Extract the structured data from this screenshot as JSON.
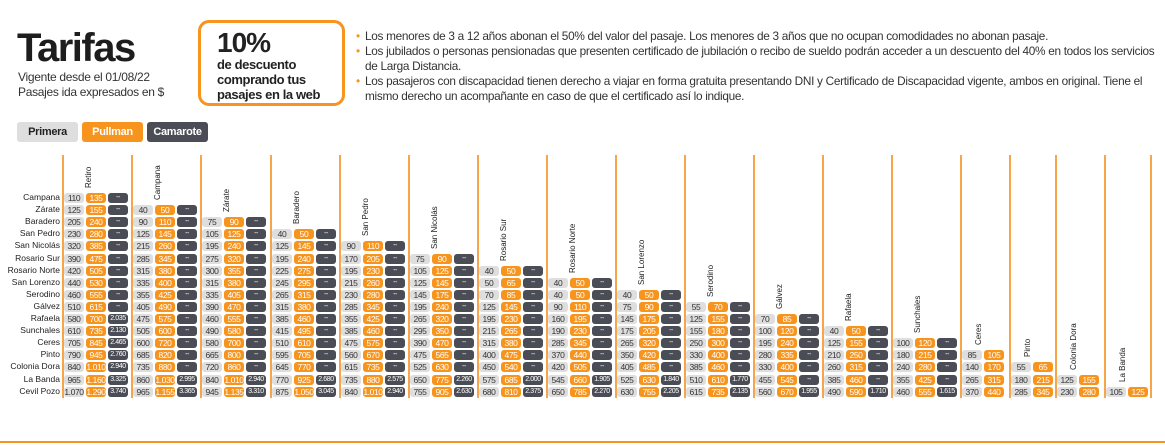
{
  "header": {
    "title": "Tarifas",
    "valid_from": "Vigente desde el 01/08/22",
    "currency_note": "Pasajes ida expresados en $"
  },
  "promo": {
    "percent": "10%",
    "text_lines": [
      "de descuento",
      "comprando tus",
      "pasajes en la web"
    ]
  },
  "notes": [
    "Los menores de 3 a 12 años abonan el 50% del valor del pasaje. Los menores de 3 años que no ocupan comodidades no abonan pasaje.",
    "Los jubilados o personas pensionadas que presenten certificado de jubilación o recibo de sueldo podrán acceder a un descuento del 40% en todos los servicios de Larga Distancia.",
    "Los pasajeros con discapacidad tienen derecho a viajar en forma gratuita presentando DNI y Certificado de Discapacidad vigente, ambos en original. Tiene el mismo derecho un acompañante en caso de que el certificado así lo indique."
  ],
  "classes": [
    {
      "label": "Primera",
      "color": "#dedede"
    },
    {
      "label": "Pullman",
      "color": "#f7941d"
    },
    {
      "label": "Camarote",
      "color": "#4a4d55"
    }
  ],
  "rows": [
    "Campana",
    "Zárate",
    "Baradero",
    "San Pedro",
    "San Nicolás",
    "Rosario Sur",
    "Rosario Norte",
    "San Lorenzo",
    "Serodino",
    "Gálvez",
    "Rafaela",
    "Sunchales",
    "Ceres",
    "Pinto",
    "Colonia Dora",
    "La Banda",
    "Cevil Pozo"
  ],
  "columns": [
    {
      "name": "Retiro",
      "fares": [
        [
          "110",
          "135",
          "--"
        ],
        [
          "125",
          "155",
          "--"
        ],
        [
          "205",
          "240",
          "--"
        ],
        [
          "230",
          "280",
          "--"
        ],
        [
          "320",
          "385",
          "--"
        ],
        [
          "390",
          "475",
          "--"
        ],
        [
          "420",
          "505",
          "--"
        ],
        [
          "440",
          "530",
          "--"
        ],
        [
          "460",
          "555",
          "--"
        ],
        [
          "510",
          "615",
          "--"
        ],
        [
          "580",
          "700",
          "2.035"
        ],
        [
          "610",
          "735",
          "2.130"
        ],
        [
          "705",
          "845",
          "2.465"
        ],
        [
          "790",
          "945",
          "2.760"
        ],
        [
          "840",
          "1.010",
          "2.940"
        ],
        [
          "965",
          "1.160",
          "3.325"
        ],
        [
          "1.070",
          "1.290",
          "3.740"
        ]
      ]
    },
    {
      "name": "Campana",
      "fares": [
        [
          "40",
          "50",
          "--"
        ],
        [
          "90",
          "110",
          "--"
        ],
        [
          "125",
          "145",
          "--"
        ],
        [
          "215",
          "260",
          "--"
        ],
        [
          "285",
          "345",
          "--"
        ],
        [
          "315",
          "380",
          "--"
        ],
        [
          "335",
          "400",
          "--"
        ],
        [
          "355",
          "425",
          "--"
        ],
        [
          "405",
          "490",
          "--"
        ],
        [
          "475",
          "575",
          "--"
        ],
        [
          "505",
          "600",
          "--"
        ],
        [
          "600",
          "720",
          "--"
        ],
        [
          "685",
          "820",
          "--"
        ],
        [
          "735",
          "880",
          "--"
        ],
        [
          "860",
          "1.030",
          "2.995"
        ],
        [
          "965",
          "1.155",
          "3.365"
        ]
      ]
    },
    {
      "name": "Zárate",
      "fares": [
        [
          "75",
          "90",
          "--"
        ],
        [
          "105",
          "125",
          "--"
        ],
        [
          "195",
          "240",
          "--"
        ],
        [
          "275",
          "320",
          "--"
        ],
        [
          "300",
          "355",
          "--"
        ],
        [
          "315",
          "380",
          "--"
        ],
        [
          "335",
          "405",
          "--"
        ],
        [
          "390",
          "470",
          "--"
        ],
        [
          "460",
          "555",
          "--"
        ],
        [
          "490",
          "580",
          "--"
        ],
        [
          "580",
          "700",
          "--"
        ],
        [
          "665",
          "800",
          "--"
        ],
        [
          "720",
          "860",
          "--"
        ],
        [
          "840",
          "1.010",
          "2.940"
        ],
        [
          "945",
          "1.135",
          "3.310"
        ]
      ]
    },
    {
      "name": "Baradero",
      "fares": [
        [
          "40",
          "50",
          "--"
        ],
        [
          "125",
          "145",
          "--"
        ],
        [
          "195",
          "240",
          "--"
        ],
        [
          "225",
          "275",
          "--"
        ],
        [
          "245",
          "295",
          "--"
        ],
        [
          "265",
          "315",
          "--"
        ],
        [
          "315",
          "380",
          "--"
        ],
        [
          "385",
          "460",
          "--"
        ],
        [
          "415",
          "495",
          "--"
        ],
        [
          "510",
          "610",
          "--"
        ],
        [
          "595",
          "705",
          "--"
        ],
        [
          "645",
          "770",
          "--"
        ],
        [
          "770",
          "925",
          "2.680"
        ],
        [
          "875",
          "1.050",
          "3.045"
        ]
      ]
    },
    {
      "name": "San Pedro",
      "fares": [
        [
          "90",
          "110",
          "--"
        ],
        [
          "170",
          "205",
          "--"
        ],
        [
          "195",
          "230",
          "--"
        ],
        [
          "215",
          "260",
          "--"
        ],
        [
          "230",
          "280",
          "--"
        ],
        [
          "285",
          "345",
          "--"
        ],
        [
          "355",
          "425",
          "--"
        ],
        [
          "385",
          "460",
          "--"
        ],
        [
          "475",
          "575",
          "--"
        ],
        [
          "560",
          "670",
          "--"
        ],
        [
          "615",
          "735",
          "--"
        ],
        [
          "735",
          "880",
          "2.575"
        ],
        [
          "840",
          "1.010",
          "2.940"
        ]
      ]
    },
    {
      "name": "San Nicolás",
      "fares": [
        [
          "75",
          "90",
          "--"
        ],
        [
          "105",
          "125",
          "--"
        ],
        [
          "125",
          "145",
          "--"
        ],
        [
          "145",
          "175",
          "--"
        ],
        [
          "195",
          "240",
          "--"
        ],
        [
          "265",
          "320",
          "--"
        ],
        [
          "295",
          "350",
          "--"
        ],
        [
          "390",
          "470",
          "--"
        ],
        [
          "475",
          "565",
          "--"
        ],
        [
          "525",
          "630",
          "--"
        ],
        [
          "650",
          "775",
          "2.260"
        ],
        [
          "755",
          "905",
          "2.630"
        ]
      ]
    },
    {
      "name": "Rosario Sur",
      "fares": [
        [
          "40",
          "50",
          "--"
        ],
        [
          "50",
          "65",
          "--"
        ],
        [
          "70",
          "85",
          "--"
        ],
        [
          "125",
          "145",
          "--"
        ],
        [
          "195",
          "230",
          "--"
        ],
        [
          "215",
          "265",
          "--"
        ],
        [
          "315",
          "380",
          "--"
        ],
        [
          "400",
          "475",
          "--"
        ],
        [
          "450",
          "540",
          "--"
        ],
        [
          "575",
          "685",
          "2.000"
        ],
        [
          "680",
          "810",
          "2.375"
        ]
      ]
    },
    {
      "name": "Rosario Norte",
      "fares": [
        [
          "40",
          "50",
          "--"
        ],
        [
          "40",
          "50",
          "--"
        ],
        [
          "90",
          "110",
          "--"
        ],
        [
          "160",
          "195",
          "--"
        ],
        [
          "190",
          "230",
          "--"
        ],
        [
          "285",
          "345",
          "--"
        ],
        [
          "370",
          "440",
          "--"
        ],
        [
          "420",
          "505",
          "--"
        ],
        [
          "545",
          "660",
          "1.905"
        ],
        [
          "650",
          "785",
          "2.270"
        ]
      ]
    },
    {
      "name": "San Lorenzo",
      "fares": [
        [
          "40",
          "50",
          "--"
        ],
        [
          "75",
          "90",
          "--"
        ],
        [
          "145",
          "175",
          "--"
        ],
        [
          "175",
          "205",
          "--"
        ],
        [
          "265",
          "320",
          "--"
        ],
        [
          "350",
          "420",
          "--"
        ],
        [
          "405",
          "485",
          "--"
        ],
        [
          "525",
          "630",
          "1.840"
        ],
        [
          "630",
          "755",
          "2.205"
        ]
      ]
    },
    {
      "name": "Serodino",
      "fares": [
        [
          "55",
          "70",
          "--"
        ],
        [
          "125",
          "155",
          "--"
        ],
        [
          "155",
          "180",
          "--"
        ],
        [
          "250",
          "300",
          "--"
        ],
        [
          "330",
          "400",
          "--"
        ],
        [
          "385",
          "460",
          "--"
        ],
        [
          "510",
          "610",
          "1.770"
        ],
        [
          "615",
          "735",
          "2.135"
        ]
      ]
    },
    {
      "name": "Gálvez",
      "fares": [
        [
          "70",
          "85",
          "--"
        ],
        [
          "100",
          "120",
          "--"
        ],
        [
          "195",
          "240",
          "--"
        ],
        [
          "280",
          "335",
          "--"
        ],
        [
          "330",
          "400",
          "--"
        ],
        [
          "455",
          "545",
          "--"
        ],
        [
          "560",
          "670",
          "1.955"
        ]
      ]
    },
    {
      "name": "Rafaela",
      "fares": [
        [
          "40",
          "50",
          "--"
        ],
        [
          "125",
          "155",
          "--"
        ],
        [
          "210",
          "250",
          "--"
        ],
        [
          "260",
          "315",
          "--"
        ],
        [
          "385",
          "460",
          "--"
        ],
        [
          "490",
          "590",
          "1.710"
        ]
      ]
    },
    {
      "name": "Sunchales",
      "fares": [
        [
          "100",
          "120",
          "--"
        ],
        [
          "180",
          "215",
          "--"
        ],
        [
          "240",
          "280",
          "--"
        ],
        [
          "355",
          "425",
          "--"
        ],
        [
          "460",
          "555",
          "1.615"
        ]
      ]
    },
    {
      "name": "Ceres",
      "fares": [
        [
          "85",
          "105"
        ],
        [
          "140",
          "170"
        ],
        [
          "265",
          "315"
        ],
        [
          "370",
          "440"
        ]
      ]
    },
    {
      "name": "Pinto",
      "fares": [
        [
          "55",
          "65"
        ],
        [
          "180",
          "215"
        ],
        [
          "285",
          "345"
        ]
      ]
    },
    {
      "name": "Colonia Dora",
      "fares": [
        [
          "125",
          "155"
        ],
        [
          "230",
          "280"
        ]
      ]
    },
    {
      "name": "La Banda",
      "fares": [
        [
          "105",
          "125"
        ]
      ]
    }
  ]
}
